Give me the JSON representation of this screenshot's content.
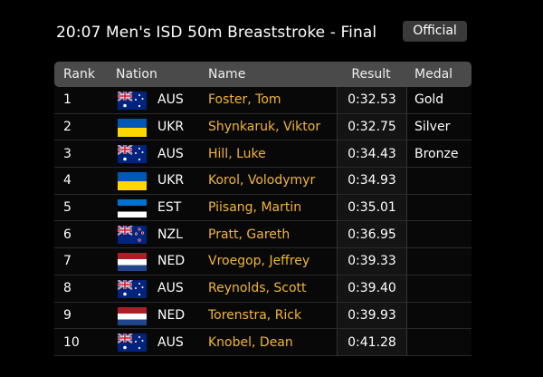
{
  "header": {
    "title": "20:07 Men's ISD 50m Breaststroke - Final",
    "status": "Official"
  },
  "table": {
    "columns": [
      "Rank",
      "Nation",
      "Name",
      "Result",
      "Medal"
    ],
    "rows": [
      {
        "rank": 1,
        "nation": "AUS",
        "name": "Foster, Tom",
        "result": "0:32.53",
        "medal": "Gold"
      },
      {
        "rank": 2,
        "nation": "UKR",
        "name": "Shynkaruk, Viktor",
        "result": "0:32.75",
        "medal": "Silver"
      },
      {
        "rank": 3,
        "nation": "AUS",
        "name": "Hill, Luke",
        "result": "0:34.43",
        "medal": "Bronze"
      },
      {
        "rank": 4,
        "nation": "UKR",
        "name": "Korol, Volodymyr",
        "result": "0:34.93"
      },
      {
        "rank": 5,
        "nation": "EST",
        "name": "Piisang, Martin",
        "result": "0:35.01"
      },
      {
        "rank": 6,
        "nation": "NZL",
        "name": "Pratt, Gareth",
        "result": "0:36.95"
      },
      {
        "rank": 7,
        "nation": "NED",
        "name": "Vroegop, Jeffrey",
        "result": "0:39.33"
      },
      {
        "rank": 8,
        "nation": "AUS",
        "name": "Reynolds, Scott",
        "result": "0:39.40"
      },
      {
        "rank": 9,
        "nation": "NED",
        "name": "Torenstra, Rick",
        "result": "0:39.93"
      },
      {
        "rank": 10,
        "nation": "AUS",
        "name": "Knobel, Dean",
        "result": "0:41.28"
      }
    ]
  }
}
